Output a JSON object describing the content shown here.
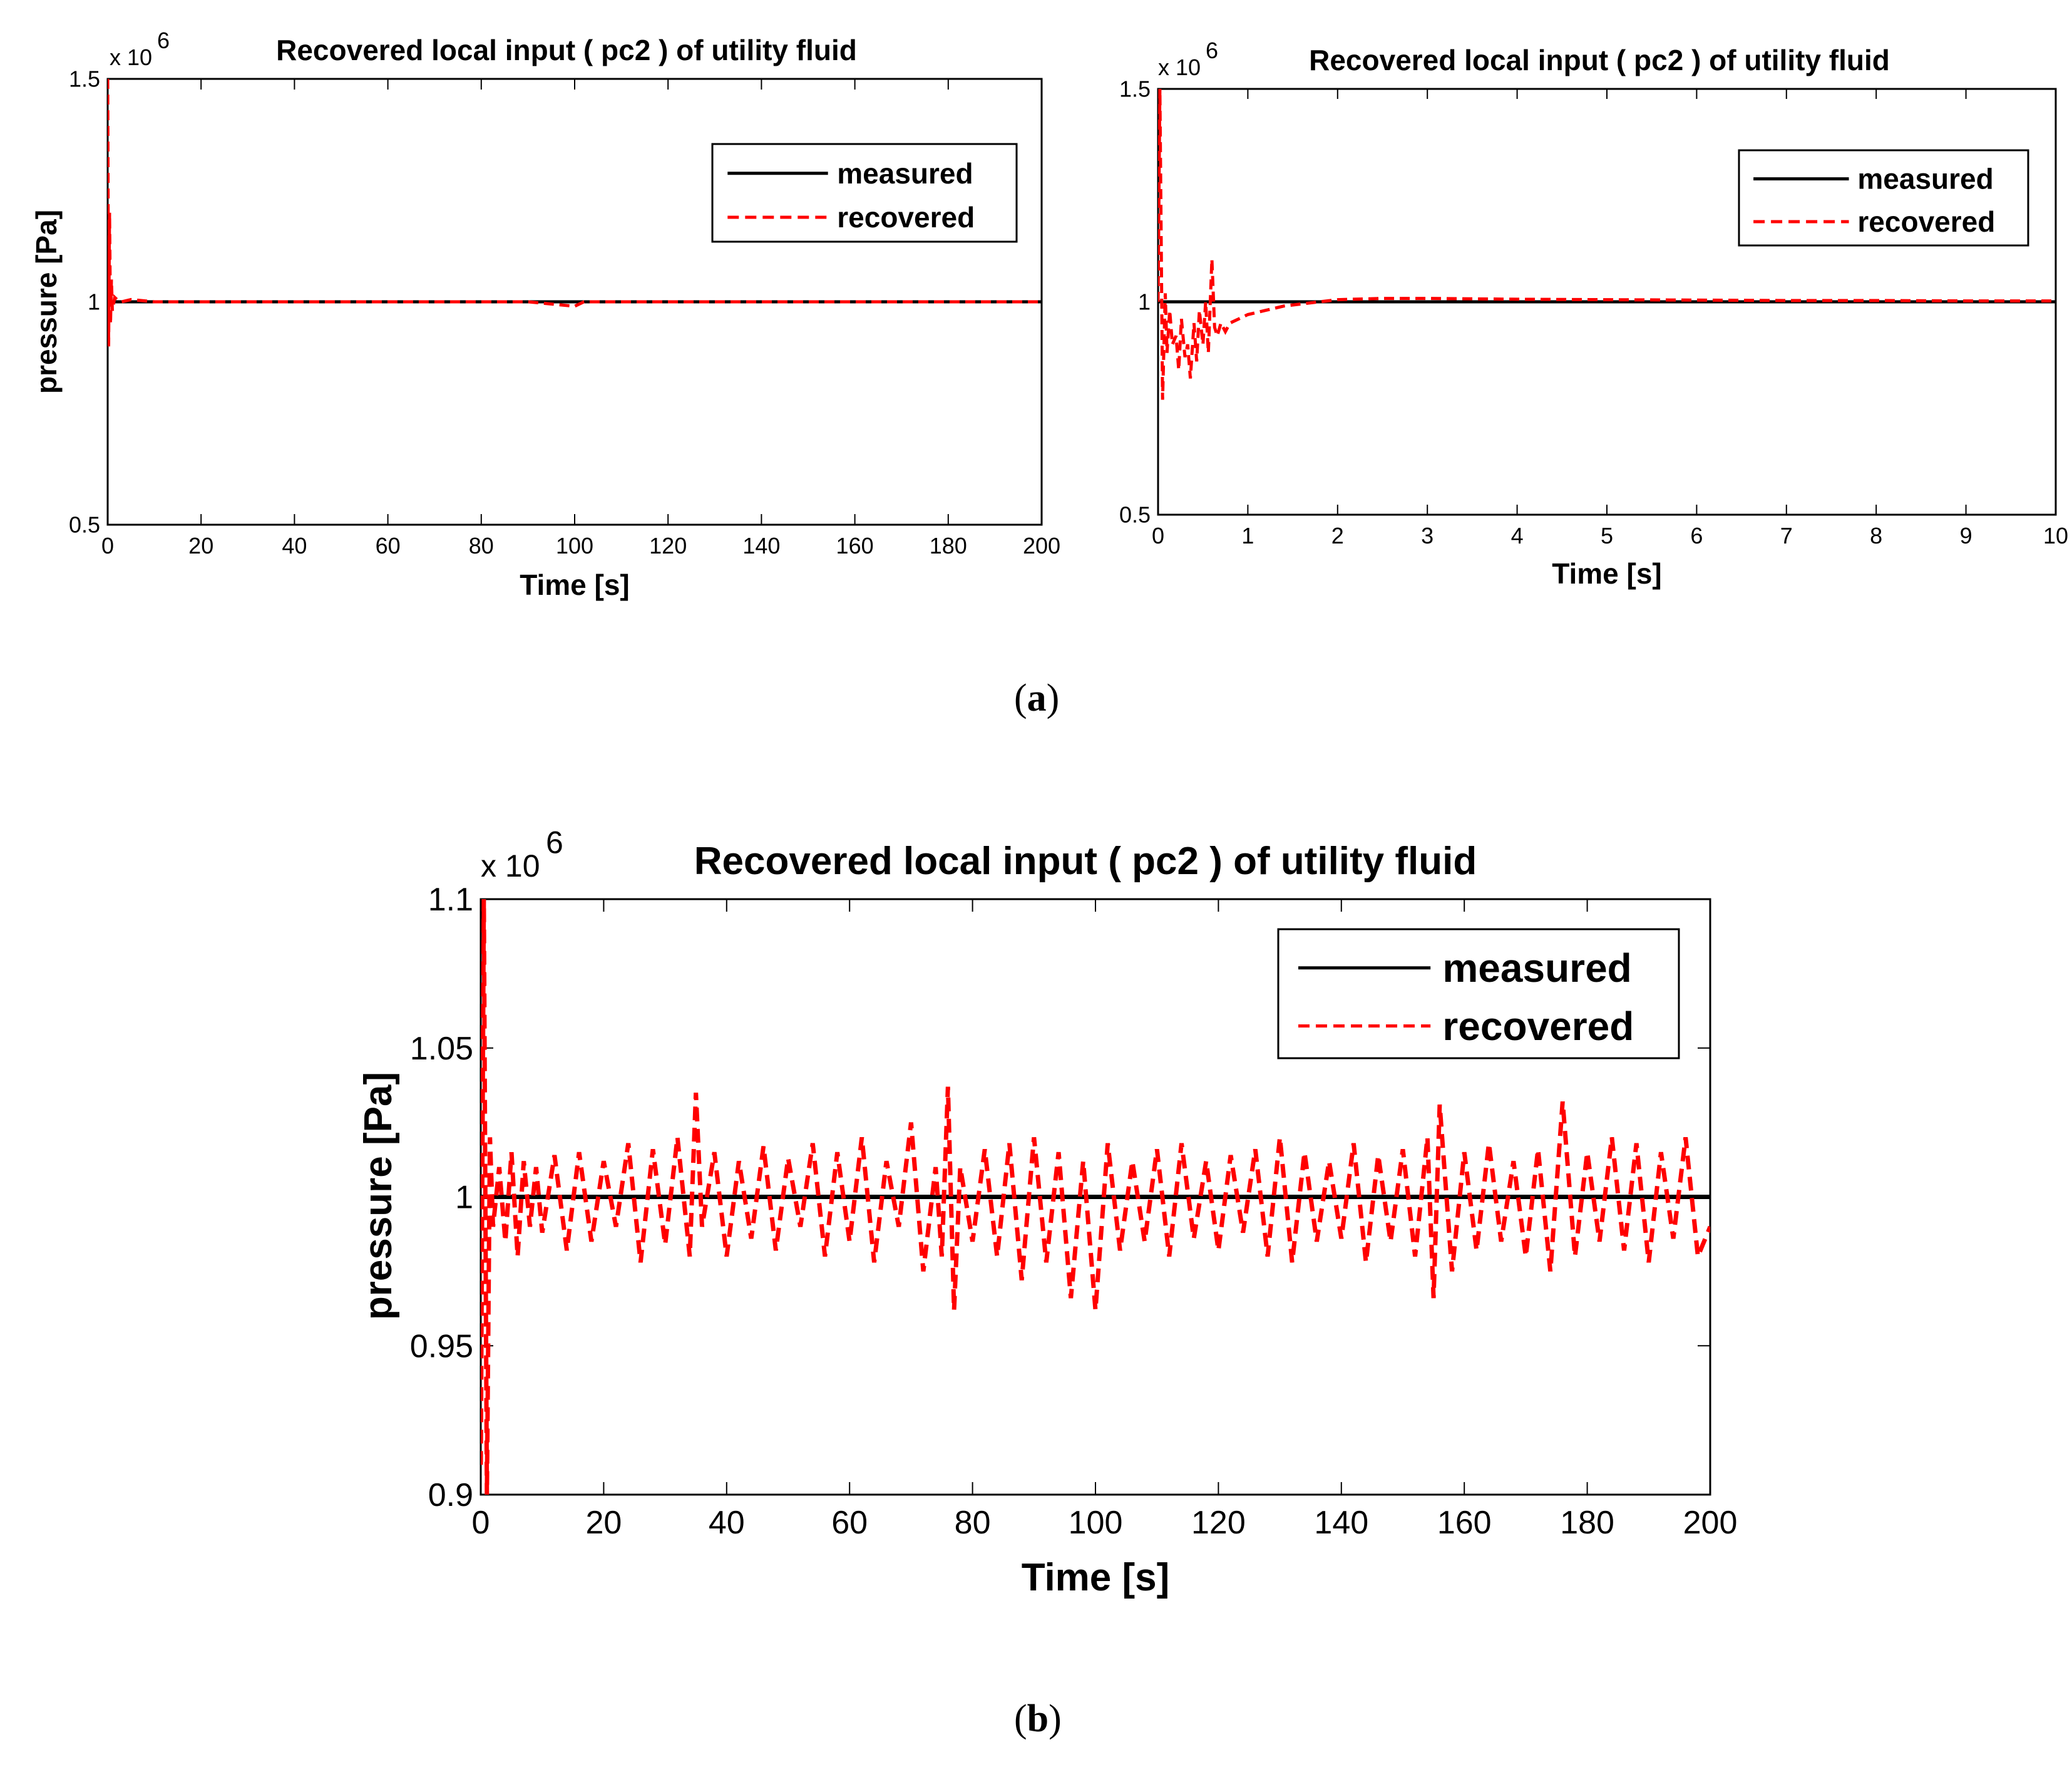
{
  "figure": {
    "caption_a": "a",
    "caption_b": "b",
    "axis_exponent_prefix": "x 10",
    "axis_exponent_power": "6"
  },
  "chart_data": [
    {
      "id": "a-left",
      "type": "line",
      "title": "Recovered local input ( pc2 ) of utility fluid",
      "xlabel": "Time [s]",
      "ylabel": "pressure [Pa]",
      "xlim": [
        0,
        200
      ],
      "ylim": [
        0.5,
        1.5
      ],
      "y_multiplier": "x 10^6",
      "xticks": [
        0,
        20,
        40,
        60,
        80,
        100,
        120,
        140,
        160,
        180,
        200
      ],
      "xtick_labels": [
        "0",
        "20",
        "40",
        "60",
        "80",
        "100",
        "120",
        "140",
        "160",
        "180",
        "200"
      ],
      "yticks": [
        0.5,
        1,
        1.5
      ],
      "ytick_labels": [
        "0.5",
        "1",
        "1.5"
      ],
      "legend": {
        "position": "top-right",
        "entries": [
          "measured",
          "recovered"
        ]
      },
      "series": [
        {
          "name": "measured",
          "color": "#000000",
          "style": "solid",
          "x": [
            0,
            200
          ],
          "y": [
            1,
            1
          ]
        },
        {
          "name": "recovered",
          "color": "#ff0000",
          "style": "dashed",
          "x": [
            0,
            0.2,
            0.4,
            0.6,
            0.8,
            1,
            1.5,
            2,
            3,
            5,
            10,
            30,
            60,
            90,
            100,
            102,
            120,
            200
          ],
          "y": [
            1.5,
            0.9,
            1.2,
            0.95,
            1.05,
            0.98,
            1.01,
            1.005,
            1.0,
            1.005,
            1.0,
            1.0,
            1.0,
            1.0,
            0.99,
            1.0,
            1.0,
            1.0
          ]
        }
      ]
    },
    {
      "id": "a-right",
      "type": "line",
      "title": "Recovered local input ( pc2 ) of utility fluid",
      "xlabel": "Time [s]",
      "ylabel": "",
      "xlim": [
        0,
        10
      ],
      "ylim": [
        0.5,
        1.5
      ],
      "y_multiplier": "x 10^6",
      "xticks": [
        0,
        1,
        2,
        3,
        4,
        5,
        6,
        7,
        8,
        9,
        10
      ],
      "xtick_labels": [
        "0",
        "1",
        "2",
        "3",
        "4",
        "5",
        "6",
        "7",
        "8",
        "9",
        "10"
      ],
      "yticks": [
        0.5,
        1,
        1.5
      ],
      "ytick_labels": [
        "0.5",
        "1",
        "1.5"
      ],
      "legend": {
        "position": "top-right",
        "entries": [
          "measured",
          "recovered"
        ]
      },
      "series": [
        {
          "name": "measured",
          "color": "#000000",
          "style": "solid",
          "x": [
            0,
            10
          ],
          "y": [
            1,
            1
          ]
        },
        {
          "name": "recovered",
          "color": "#ff0000",
          "style": "dashed",
          "x": [
            0,
            0.02,
            0.05,
            0.08,
            0.1,
            0.13,
            0.16,
            0.2,
            0.23,
            0.26,
            0.3,
            0.33,
            0.36,
            0.4,
            0.43,
            0.46,
            0.5,
            0.53,
            0.56,
            0.6,
            0.63,
            0.66,
            0.7,
            0.75,
            0.8,
            0.9,
            1.0,
            1.1,
            1.2,
            1.4,
            1.6,
            1.8,
            2.0,
            2.5,
            3,
            4,
            5,
            6,
            7,
            8,
            9,
            10
          ],
          "y": [
            1.0,
            1.5,
            0.77,
            1.02,
            0.88,
            0.98,
            0.9,
            0.92,
            0.84,
            0.96,
            0.87,
            0.9,
            0.82,
            0.95,
            0.86,
            0.98,
            0.9,
            1.0,
            0.88,
            1.1,
            0.94,
            0.92,
            0.95,
            0.93,
            0.95,
            0.96,
            0.97,
            0.975,
            0.98,
            0.99,
            0.995,
            1.0,
            1.005,
            1.008,
            1.008,
            1.006,
            1.005,
            1.004,
            1.003,
            1.003,
            1.002,
            1.002
          ]
        }
      ]
    },
    {
      "id": "b",
      "type": "line",
      "title": "Recovered local input ( pc2 ) of utility fluid",
      "xlabel": "Time [s]",
      "ylabel": "pressure [Pa]",
      "xlim": [
        0,
        200
      ],
      "ylim": [
        0.9,
        1.1
      ],
      "y_multiplier": "x 10^6",
      "xticks": [
        0,
        20,
        40,
        60,
        80,
        100,
        120,
        140,
        160,
        180,
        200
      ],
      "xtick_labels": [
        "0",
        "20",
        "40",
        "60",
        "80",
        "100",
        "120",
        "140",
        "160",
        "180",
        "200"
      ],
      "yticks": [
        0.9,
        0.95,
        1,
        1.05,
        1.1
      ],
      "ytick_labels": [
        "0.9",
        "0.95",
        "1",
        "1.05",
        "1.1"
      ],
      "legend": {
        "position": "top-right",
        "entries": [
          "measured",
          "recovered"
        ]
      },
      "noise_description": "recovered oscillates around 1.0 with amplitude about ±0.02, initial spike 0.9–1.1",
      "series": [
        {
          "name": "measured",
          "color": "#000000",
          "style": "solid",
          "x": [
            0,
            200
          ],
          "y": [
            1,
            1
          ]
        },
        {
          "name": "recovered",
          "color": "#ff0000",
          "style": "dashed",
          "x": [
            0,
            0.5,
            1.0,
            1.5,
            2.0,
            3,
            4,
            5,
            6,
            7,
            8,
            9,
            10,
            12,
            14,
            16,
            18,
            20,
            22,
            24,
            26,
            28,
            30,
            32,
            34,
            35,
            36,
            38,
            40,
            42,
            44,
            46,
            48,
            50,
            52,
            54,
            56,
            58,
            60,
            62,
            64,
            66,
            68,
            70,
            72,
            74,
            75,
            76,
            77,
            78,
            80,
            82,
            84,
            86,
            88,
            90,
            92,
            94,
            96,
            98,
            100,
            102,
            104,
            106,
            108,
            110,
            112,
            114,
            116,
            118,
            120,
            122,
            124,
            126,
            128,
            130,
            132,
            134,
            136,
            138,
            140,
            142,
            144,
            146,
            148,
            150,
            152,
            154,
            155,
            156,
            158,
            160,
            162,
            164,
            166,
            168,
            170,
            172,
            174,
            176,
            178,
            180,
            182,
            184,
            186,
            188,
            190,
            192,
            194,
            196,
            198,
            200
          ],
          "y": [
            0.91,
            1.1,
            0.9,
            1.02,
            0.99,
            1.01,
            0.985,
            1.015,
            0.98,
            1.012,
            0.99,
            1.01,
            0.988,
            1.014,
            0.982,
            1.015,
            0.985,
            1.012,
            0.99,
            1.018,
            0.978,
            1.016,
            0.984,
            1.02,
            0.98,
            1.035,
            0.99,
            1.015,
            0.98,
            1.012,
            0.986,
            1.017,
            0.982,
            1.013,
            0.99,
            1.018,
            0.98,
            1.015,
            0.985,
            1.02,
            0.978,
            1.012,
            0.99,
            1.025,
            0.975,
            1.01,
            0.98,
            1.037,
            0.962,
            1.01,
            0.985,
            1.016,
            0.98,
            1.018,
            0.972,
            1.02,
            0.978,
            1.015,
            0.966,
            1.012,
            0.962,
            1.018,
            0.982,
            1.012,
            0.985,
            1.016,
            0.98,
            1.018,
            0.986,
            1.012,
            0.982,
            1.014,
            0.988,
            1.016,
            0.98,
            1.02,
            0.978,
            1.015,
            0.985,
            1.012,
            0.986,
            1.018,
            0.978,
            1.014,
            0.985,
            1.016,
            0.98,
            1.02,
            0.966,
            1.031,
            0.975,
            1.015,
            0.982,
            1.018,
            0.985,
            1.012,
            0.98,
            1.016,
            0.975,
            1.032,
            0.98,
            1.015,
            0.985,
            1.02,
            0.982,
            1.018,
            0.978,
            1.015,
            0.986,
            1.02,
            0.98,
            0.99
          ]
        }
      ]
    }
  ]
}
